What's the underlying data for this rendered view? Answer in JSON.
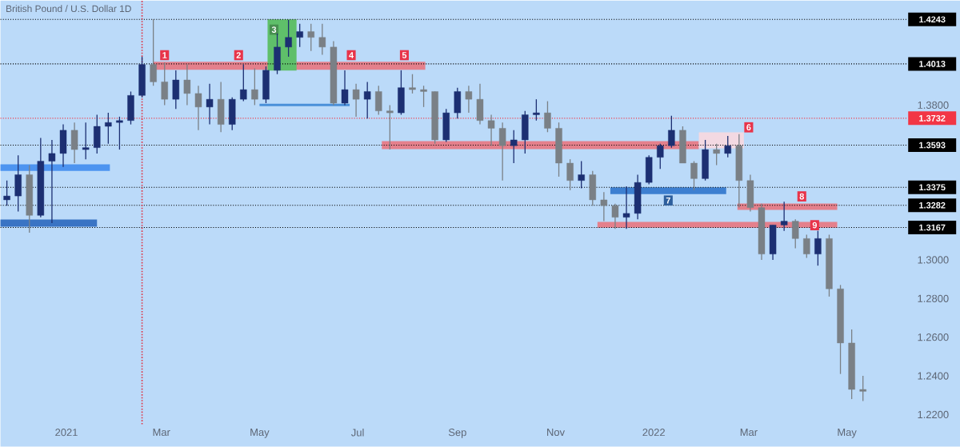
{
  "chart_data": {
    "type": "candlestick",
    "title": "British Pound / U.S. Dollar  1D",
    "xlim": [
      "2020-11-21",
      "2022-06-08"
    ],
    "xticks": [
      {
        "value": "2021-01-01",
        "label": "2021"
      },
      {
        "value": "2021-03-01",
        "label": "Mar"
      },
      {
        "value": "2021-05-01",
        "label": "May"
      },
      {
        "value": "2021-07-01",
        "label": "Jul"
      },
      {
        "value": "2021-09-01",
        "label": "Sep"
      },
      {
        "value": "2021-11-01",
        "label": "Nov"
      },
      {
        "value": "2022-01-01",
        "label": "2022"
      },
      {
        "value": "2022-03-01",
        "label": "Mar"
      },
      {
        "value": "2022-05-01",
        "label": "May"
      }
    ],
    "ylim": [
      1.215,
      1.434
    ],
    "yticks": [
      {
        "value": 1.22,
        "label": "1.2200"
      },
      {
        "value": 1.24,
        "label": "1.2400"
      },
      {
        "value": 1.26,
        "label": "1.2600"
      },
      {
        "value": 1.28,
        "label": "1.2800"
      },
      {
        "value": 1.3,
        "label": "1.3000"
      },
      {
        "value": 1.38,
        "label": "1.3800"
      }
    ],
    "x": [
      "2020-11-25",
      "2020-12-02",
      "2020-12-09",
      "2020-12-16",
      "2020-12-23",
      "2020-12-30",
      "2021-01-06",
      "2021-01-13",
      "2021-01-20",
      "2021-01-27",
      "2021-02-03",
      "2021-02-10",
      "2021-02-17",
      "2021-02-24",
      "2021-03-03",
      "2021-03-10",
      "2021-03-17",
      "2021-03-24",
      "2021-03-31",
      "2021-04-07",
      "2021-04-14",
      "2021-04-21",
      "2021-04-28",
      "2021-05-05",
      "2021-05-12",
      "2021-05-19",
      "2021-05-26",
      "2021-06-02",
      "2021-06-09",
      "2021-06-16",
      "2021-06-23",
      "2021-06-30",
      "2021-07-07",
      "2021-07-14",
      "2021-07-21",
      "2021-07-28",
      "2021-08-04",
      "2021-08-11",
      "2021-08-18",
      "2021-08-25",
      "2021-09-01",
      "2021-09-08",
      "2021-09-15",
      "2021-09-22",
      "2021-09-29",
      "2021-10-06",
      "2021-10-13",
      "2021-10-20",
      "2021-10-27",
      "2021-11-03",
      "2021-11-10",
      "2021-11-17",
      "2021-11-24",
      "2021-12-01",
      "2021-12-08",
      "2021-12-15",
      "2021-12-22",
      "2021-12-29",
      "2022-01-05",
      "2022-01-12",
      "2022-01-19",
      "2022-01-26",
      "2022-02-02",
      "2022-02-09",
      "2022-02-16",
      "2022-02-23",
      "2022-03-02",
      "2022-03-09",
      "2022-03-16",
      "2022-03-23",
      "2022-03-30",
      "2022-04-06",
      "2022-04-13",
      "2022-04-20",
      "2022-04-27",
      "2022-05-04",
      "2022-05-11"
    ],
    "ohlc": [
      [
        1.331,
        1.341,
        1.328,
        1.333
      ],
      [
        1.333,
        1.354,
        1.325,
        1.344
      ],
      [
        1.344,
        1.349,
        1.314,
        1.323
      ],
      [
        1.323,
        1.363,
        1.322,
        1.351
      ],
      [
        1.351,
        1.362,
        1.319,
        1.355
      ],
      [
        1.355,
        1.37,
        1.348,
        1.367
      ],
      [
        1.367,
        1.371,
        1.35,
        1.357
      ],
      [
        1.357,
        1.371,
        1.352,
        1.358
      ],
      [
        1.358,
        1.375,
        1.355,
        1.369
      ],
      [
        1.369,
        1.376,
        1.36,
        1.371
      ],
      [
        1.371,
        1.374,
        1.357,
        1.372
      ],
      [
        1.372,
        1.387,
        1.37,
        1.385
      ],
      [
        1.385,
        1.405,
        1.384,
        1.401
      ],
      [
        1.401,
        1.4243,
        1.39,
        1.392
      ],
      [
        1.392,
        1.402,
        1.38,
        1.383
      ],
      [
        1.383,
        1.398,
        1.378,
        1.393
      ],
      [
        1.393,
        1.401,
        1.38,
        1.386
      ],
      [
        1.386,
        1.39,
        1.367,
        1.379
      ],
      [
        1.379,
        1.391,
        1.37,
        1.383
      ],
      [
        1.383,
        1.392,
        1.366,
        1.37
      ],
      [
        1.37,
        1.384,
        1.367,
        1.383
      ],
      [
        1.383,
        1.401,
        1.382,
        1.388
      ],
      [
        1.388,
        1.399,
        1.38,
        1.383
      ],
      [
        1.383,
        1.4,
        1.381,
        1.398
      ],
      [
        1.398,
        1.417,
        1.396,
        1.41
      ],
      [
        1.41,
        1.424,
        1.405,
        1.415
      ],
      [
        1.415,
        1.422,
        1.41,
        1.418
      ],
      [
        1.418,
        1.422,
        1.408,
        1.415
      ],
      [
        1.415,
        1.422,
        1.406,
        1.41
      ],
      [
        1.41,
        1.413,
        1.38,
        1.381
      ],
      [
        1.381,
        1.398,
        1.38,
        1.388
      ],
      [
        1.388,
        1.391,
        1.374,
        1.383
      ],
      [
        1.383,
        1.392,
        1.373,
        1.387
      ],
      [
        1.387,
        1.39,
        1.375,
        1.377
      ],
      [
        1.377,
        1.38,
        1.357,
        1.376
      ],
      [
        1.376,
        1.398,
        1.375,
        1.389
      ],
      [
        1.389,
        1.396,
        1.386,
        1.388
      ],
      [
        1.388,
        1.39,
        1.379,
        1.387
      ],
      [
        1.387,
        1.387,
        1.36,
        1.362
      ],
      [
        1.362,
        1.378,
        1.361,
        1.376
      ],
      [
        1.376,
        1.389,
        1.373,
        1.387
      ],
      [
        1.387,
        1.39,
        1.376,
        1.383
      ],
      [
        1.383,
        1.391,
        1.37,
        1.372
      ],
      [
        1.372,
        1.375,
        1.359,
        1.368
      ],
      [
        1.368,
        1.371,
        1.341,
        1.359
      ],
      [
        1.359,
        1.367,
        1.35,
        1.362
      ],
      [
        1.362,
        1.377,
        1.355,
        1.375
      ],
      [
        1.375,
        1.383,
        1.372,
        1.376
      ],
      [
        1.376,
        1.382,
        1.366,
        1.368
      ],
      [
        1.368,
        1.371,
        1.343,
        1.35
      ],
      [
        1.35,
        1.352,
        1.336,
        1.341
      ],
      [
        1.341,
        1.351,
        1.337,
        1.344
      ],
      [
        1.344,
        1.346,
        1.328,
        1.331
      ],
      [
        1.331,
        1.335,
        1.32,
        1.328
      ],
      [
        1.328,
        1.329,
        1.316,
        1.322
      ],
      [
        1.322,
        1.338,
        1.316,
        1.324
      ],
      [
        1.324,
        1.344,
        1.321,
        1.34
      ],
      [
        1.34,
        1.354,
        1.339,
        1.353
      ],
      [
        1.353,
        1.36,
        1.347,
        1.359
      ],
      [
        1.359,
        1.3745,
        1.358,
        1.367
      ],
      [
        1.367,
        1.369,
        1.35,
        1.35
      ],
      [
        1.35,
        1.351,
        1.336,
        1.342
      ],
      [
        1.342,
        1.362,
        1.341,
        1.357
      ],
      [
        1.357,
        1.36,
        1.349,
        1.355
      ],
      [
        1.355,
        1.364,
        1.353,
        1.359
      ],
      [
        1.359,
        1.365,
        1.327,
        1.341
      ],
      [
        1.341,
        1.344,
        1.325,
        1.327
      ],
      [
        1.327,
        1.329,
        1.3,
        1.303
      ],
      [
        1.303,
        1.318,
        1.3,
        1.318
      ],
      [
        1.318,
        1.33,
        1.315,
        1.32
      ],
      [
        1.32,
        1.321,
        1.306,
        1.311
      ],
      [
        1.311,
        1.313,
        1.301,
        1.303
      ],
      [
        1.303,
        1.315,
        1.297,
        1.311
      ],
      [
        1.311,
        1.313,
        1.281,
        1.285
      ],
      [
        1.285,
        1.287,
        1.241,
        1.257
      ],
      [
        1.257,
        1.264,
        1.228,
        1.233
      ],
      [
        1.233,
        1.24,
        1.227,
        1.232
      ]
    ],
    "colors": [
      "#1c2f72",
      "#1c2f72",
      "#7a8086",
      "#1c2f72",
      "#1c2f72",
      "#1c2f72",
      "#7a8086",
      "#1c2f72",
      "#1c2f72",
      "#1c2f72",
      "#1c2f72",
      "#1c2f72",
      "#1c2f72",
      "#7a8086",
      "#7a8086",
      "#1c2f72",
      "#7a8086",
      "#7a8086",
      "#1c2f72",
      "#7a8086",
      "#1c2f72",
      "#1c2f72",
      "#7a8086",
      "#1c2f72",
      "#1c2f72",
      "#1c2f72",
      "#1c2f72",
      "#7a8086",
      "#7a8086",
      "#7a8086",
      "#1c2f72",
      "#7a8086",
      "#1c2f72",
      "#7a8086",
      "#7a8086",
      "#1c2f72",
      "#7a8086",
      "#7a8086",
      "#7a8086",
      "#1c2f72",
      "#1c2f72",
      "#7a8086",
      "#7a8086",
      "#7a8086",
      "#7a8086",
      "#1c2f72",
      "#1c2f72",
      "#1c2f72",
      "#7a8086",
      "#7a8086",
      "#7a8086",
      "#1c2f72",
      "#7a8086",
      "#7a8086",
      "#7a8086",
      "#1c2f72",
      "#1c2f72",
      "#1c2f72",
      "#1c2f72",
      "#1c2f72",
      "#7a8086",
      "#7a8086",
      "#1c2f72",
      "#7a8086",
      "#1c2f72",
      "#7a8086",
      "#7a8086",
      "#7a8086",
      "#1c2f72",
      "#1c2f72",
      "#7a8086",
      "#7a8086",
      "#1c2f72",
      "#7a8086",
      "#7a8086",
      "#7a8086",
      "#7a8086"
    ],
    "ref_lines": [
      {
        "axis": "y",
        "value": 1.4243,
        "label": "1.4243",
        "color": "#000000",
        "line_style": "dotted"
      },
      {
        "axis": "y",
        "value": 1.4013,
        "label": "1.4013",
        "color": "#000000",
        "line_style": "dotted"
      },
      {
        "axis": "y",
        "value": 1.3732,
        "label": "1.3732",
        "color": "#f23645",
        "line_style": "dotted"
      },
      {
        "axis": "y",
        "value": 1.3593,
        "label": "1.3593",
        "color": "#000000",
        "line_style": "dotted"
      },
      {
        "axis": "y",
        "value": 1.3375,
        "label": "1.3375",
        "color": "#000000",
        "line_style": "dotted"
      },
      {
        "axis": "y",
        "value": 1.3282,
        "label": "1.3282",
        "color": "#000000",
        "line_style": "dotted"
      },
      {
        "axis": "y",
        "value": 1.3167,
        "label": "1.3167",
        "color": "#000000",
        "line_style": "dotted"
      },
      {
        "axis": "x",
        "value": "2021-02-17",
        "color": "#e03040",
        "line_style": "dotted"
      }
    ],
    "series": [
      {
        "type": "line",
        "x": [
          "2021-02-24",
          "2021-08-12"
        ],
        "values": [
          null,
          null
        ],
        "lower": [
          1.3983,
          1.3983
        ],
        "upper": [
          1.4024,
          1.4024
        ],
        "color": "#e4808c"
      },
      {
        "type": "line",
        "x": [
          "2021-05-06",
          "2021-05-24"
        ],
        "values": [
          null,
          null
        ],
        "lower": [
          1.3978,
          1.3978
        ],
        "upper": [
          1.4243,
          1.4243
        ],
        "color": "#5fbf6a"
      },
      {
        "type": "line",
        "x": [
          "2021-05-01",
          "2021-06-26"
        ],
        "values": [
          null,
          null
        ],
        "lower": [
          1.3795,
          1.3795
        ],
        "upper": [
          1.3807,
          1.3807
        ],
        "color": "#4a90d9"
      },
      {
        "type": "line",
        "x": [
          "2021-07-16",
          "2022-01-29"
        ],
        "values": [
          null,
          null
        ],
        "lower": [
          1.3572,
          1.3572
        ],
        "upper": [
          1.3614,
          1.3614
        ],
        "color": "#e4808c"
      },
      {
        "type": "line",
        "x": [
          "2022-01-29",
          "2022-02-26"
        ],
        "values": [
          null,
          null
        ],
        "lower": [
          1.3576,
          1.3576
        ],
        "upper": [
          1.3659,
          1.3659
        ],
        "color": "#f3d9e2"
      },
      {
        "type": "line",
        "x": [
          "2021-12-05",
          "2022-02-15"
        ],
        "values": [
          null,
          null
        ],
        "lower": [
          1.334,
          1.334
        ],
        "upper": [
          1.3375,
          1.3375
        ],
        "color": "#3d7fd1"
      },
      {
        "type": "line",
        "x": [
          "2022-02-22",
          "2022-04-25"
        ],
        "values": [
          null,
          null
        ],
        "lower": [
          1.3258,
          1.3258
        ],
        "upper": [
          1.3291,
          1.3291
        ],
        "color": "#e4808c"
      },
      {
        "type": "line",
        "x": [
          "2021-11-27",
          "2022-04-25"
        ],
        "values": [
          null,
          null
        ],
        "lower": [
          1.3166,
          1.3166
        ],
        "upper": [
          1.3196,
          1.3196
        ],
        "color": "#e4808c"
      },
      {
        "type": "line",
        "x": [
          "2020-11-21",
          "2021-01-28"
        ],
        "values": [
          null,
          null
        ],
        "lower": [
          1.346,
          1.346
        ],
        "upper": [
          1.3494,
          1.3494
        ],
        "color": "#4d94f0"
      },
      {
        "type": "line",
        "x": [
          "2020-11-21",
          "2021-01-20"
        ],
        "values": [
          null,
          null
        ],
        "lower": [
          1.3171,
          1.3171
        ],
        "upper": [
          1.3208,
          1.3208
        ],
        "color": "#3a74c4"
      }
    ],
    "annotations": [
      {
        "text": "1",
        "x": "2021-03-03",
        "y": 1.4058
      },
      {
        "text": "2",
        "x": "2021-04-18",
        "y": 1.4058
      },
      {
        "text": "3",
        "x": "2021-05-10",
        "y": 1.419
      },
      {
        "text": "4",
        "x": "2021-06-27",
        "y": 1.4058
      },
      {
        "text": "5",
        "x": "2021-07-30",
        "y": 1.4058
      },
      {
        "text": "6",
        "x": "2022-03-01",
        "y": 1.3685
      },
      {
        "text": "7",
        "x": "2022-01-10",
        "y": 1.3307
      },
      {
        "text": "8",
        "x": "2022-04-03",
        "y": 1.3328
      },
      {
        "text": "9",
        "x": "2022-04-11",
        "y": 1.3179
      }
    ]
  }
}
